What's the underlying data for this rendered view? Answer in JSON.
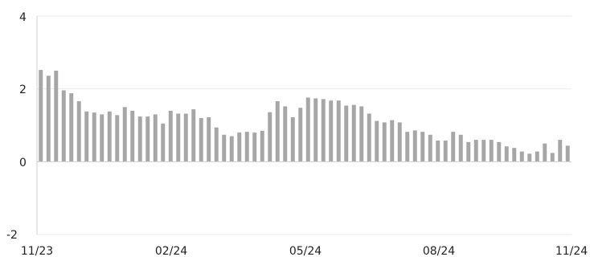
{
  "chart_data": {
    "type": "bar",
    "title": "",
    "xlabel": "",
    "ylabel": "",
    "ylim": [
      -2,
      4
    ],
    "y_ticks": [
      -2,
      0,
      2,
      4
    ],
    "y_tick_labels": [
      "-2",
      "0",
      "2",
      "4"
    ],
    "x_tick_labels": [
      "11/23",
      "02/24",
      "05/24",
      "08/24",
      "11/24"
    ],
    "x_range": [
      "2023-11",
      "2024-11"
    ],
    "grid": "horizontal",
    "legend": "none",
    "bar_color": "#a6a6a6",
    "series": [
      {
        "values": [
          2.52,
          2.36,
          2.5,
          1.96,
          1.88,
          1.66,
          1.38,
          1.35,
          1.3,
          1.38,
          1.28,
          1.5,
          1.4,
          1.24,
          1.24,
          1.3,
          1.05,
          1.4,
          1.32,
          1.32,
          1.44,
          1.2,
          1.22,
          0.94,
          0.74,
          0.7,
          0.8,
          0.82,
          0.8,
          0.85,
          1.36,
          1.66,
          1.52,
          1.22,
          1.48,
          1.76,
          1.74,
          1.72,
          1.68,
          1.68,
          1.54,
          1.56,
          1.52,
          1.32,
          1.12,
          1.08,
          1.14,
          1.08,
          0.82,
          0.86,
          0.82,
          0.74,
          0.58,
          0.58,
          0.82,
          0.74,
          0.54,
          0.6,
          0.6,
          0.6,
          0.54,
          0.42,
          0.38,
          0.28,
          0.22,
          0.28,
          0.5,
          0.24,
          0.6,
          0.44
        ]
      }
    ]
  }
}
